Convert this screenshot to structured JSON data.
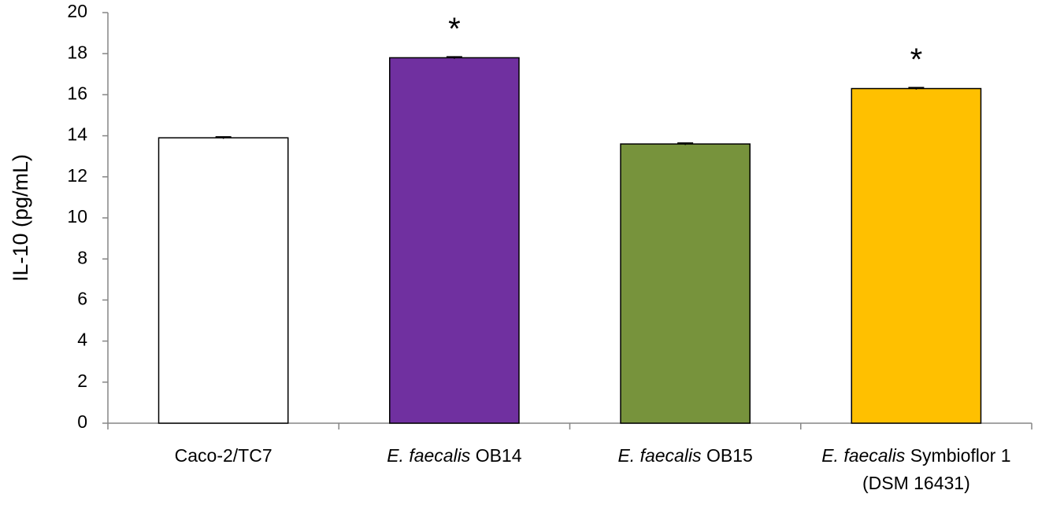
{
  "chart_data": {
    "type": "bar",
    "y_label": "IL-10 (pg/mL)",
    "categories": [
      {
        "lines": [
          [
            {
              "text": "Caco-2/TC7",
              "italic": false
            }
          ]
        ]
      },
      {
        "lines": [
          [
            {
              "text": "E. faecalis",
              "italic": true
            },
            {
              "text": " OB14",
              "italic": false
            }
          ]
        ]
      },
      {
        "lines": [
          [
            {
              "text": "E. faecalis",
              "italic": true
            },
            {
              "text": " OB15",
              "italic": false
            }
          ]
        ]
      },
      {
        "lines": [
          [
            {
              "text": "E. faecalis",
              "italic": true
            },
            {
              "text": " Symbioflor 1",
              "italic": false
            }
          ],
          [
            {
              "text": "(DSM 16431)",
              "italic": false
            }
          ]
        ]
      }
    ],
    "values": [
      13.9,
      17.8,
      13.6,
      16.3
    ],
    "errors": [
      0.05,
      0.05,
      0.05,
      0.05
    ],
    "colors": [
      "#ffffff",
      "#7030a0",
      "#77933c",
      "#ffc000"
    ],
    "annotations": [
      {
        "text": "*",
        "index": 1
      },
      {
        "text": "*",
        "index": 3
      }
    ],
    "ylim": [
      0,
      20
    ],
    "yticks": [
      0,
      2,
      4,
      6,
      8,
      10,
      12,
      14,
      16,
      18,
      20
    ],
    "grid": false
  }
}
